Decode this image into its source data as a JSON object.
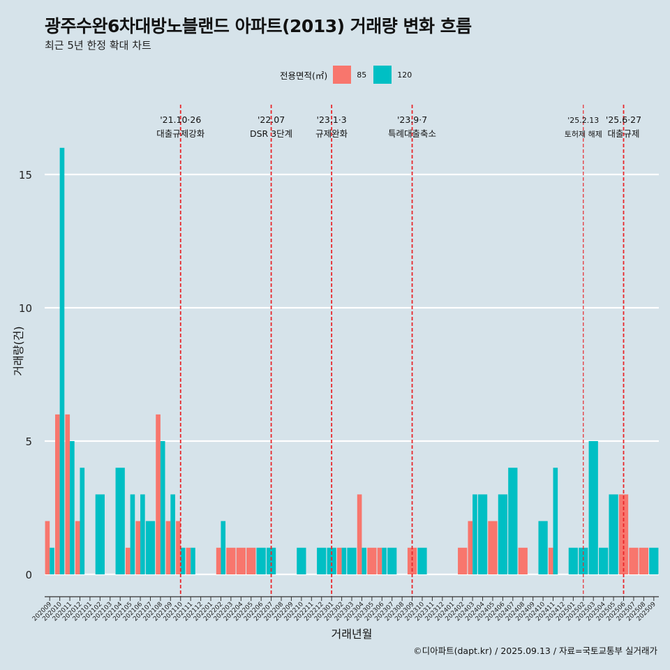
{
  "title": "광주수완6차대방노블랜드 아파트(2013) 거래량 변화 흐름",
  "subtitle": "최근 5년 한정 확대 차트",
  "caption": "©디아파트(dapt.kr) / 2025.09.13 / 자료=국토교통부 실거래가",
  "legend": {
    "title": "전용면적(㎡)",
    "items": [
      {
        "label": "85",
        "color": "#f8766d"
      },
      {
        "label": "120",
        "color": "#00bfc4"
      }
    ]
  },
  "chart_data": {
    "type": "bar",
    "xlabel": "거래년월",
    "ylabel": "거래량(건)",
    "ylim": [
      0,
      17
    ],
    "yticks": [
      0,
      5,
      10,
      15
    ],
    "grid": true,
    "legend_position": "top",
    "categories": [
      "202009",
      "202010",
      "202011",
      "202012",
      "202101",
      "202102",
      "202103",
      "202104",
      "202105",
      "202106",
      "202107",
      "202108",
      "202109",
      "202110",
      "202111",
      "202112",
      "202201",
      "202202",
      "202203",
      "202204",
      "202205",
      "202206",
      "202207",
      "202208",
      "202209",
      "202210",
      "202211",
      "202212",
      "202301",
      "202302",
      "202303",
      "202304",
      "202305",
      "202306",
      "202307",
      "202308",
      "202309",
      "202310",
      "202311",
      "202312",
      "202401",
      "202402",
      "202403",
      "202404",
      "202405",
      "202406",
      "202407",
      "202408",
      "202409",
      "202410",
      "202411",
      "202412",
      "202501",
      "202502",
      "202503",
      "202504",
      "202505",
      "202506",
      "202507",
      "202508",
      "202509"
    ],
    "tick_labels_shown": [
      "202009",
      "202010",
      "202011",
      "202012",
      "202101",
      "202102",
      "202103",
      "202104",
      "202105",
      "202106",
      "202107",
      "202108",
      "202109",
      "202110",
      "202111",
      "202112",
      "202201",
      "202202",
      "202203",
      "202204",
      "202205",
      "202206",
      "202207",
      "202208",
      "202209",
      "202210",
      "202211",
      "202212",
      "202301",
      "202302",
      "202303",
      "202304",
      "202305",
      "202306",
      "202307",
      "202308",
      "202309",
      "202310",
      "202311",
      "202312",
      "202401",
      "202402",
      "202403",
      "202404",
      "202405",
      "202406",
      "202407",
      "202408",
      "202409",
      "202410",
      "202411",
      "202412",
      "202501",
      "202502",
      "202503",
      "202504",
      "202505",
      "202506",
      "202507",
      "202508",
      "202509"
    ],
    "series": [
      {
        "name": "85",
        "color": "#f8766d",
        "values": [
          2,
          6,
          6,
          2,
          0,
          0,
          0,
          0,
          1,
          2,
          0,
          6,
          2,
          2,
          1,
          0,
          0,
          1,
          1,
          1,
          1,
          0,
          0,
          0,
          0,
          0,
          0,
          0,
          0,
          1,
          0,
          3,
          1,
          1,
          0,
          0,
          1,
          0,
          0,
          0,
          0,
          1,
          2,
          0,
          2,
          0,
          0,
          1,
          0,
          0,
          1,
          0,
          0,
          0,
          0,
          0,
          0,
          3,
          1,
          1,
          0
        ]
      },
      {
        "name": "120",
        "color": "#00bfc4",
        "values": [
          1,
          16,
          5,
          4,
          0,
          3,
          0,
          4,
          3,
          3,
          2,
          5,
          3,
          1,
          1,
          0,
          0,
          2,
          0,
          0,
          0,
          1,
          1,
          0,
          0,
          1,
          0,
          1,
          1,
          1,
          1,
          1,
          0,
          1,
          1,
          0,
          0,
          1,
          0,
          0,
          0,
          0,
          3,
          3,
          0,
          3,
          4,
          0,
          0,
          2,
          4,
          0,
          1,
          1,
          5,
          1,
          3,
          0,
          0,
          0,
          1
        ]
      }
    ],
    "annotations": [
      {
        "at": "202110",
        "date": "'21.10·26",
        "label": "대출규제강화",
        "style": "bold"
      },
      {
        "at": "202207",
        "date": "'22.07",
        "label": "DSR 3단계",
        "style": "bold"
      },
      {
        "at": "202301",
        "date": "'23.1·3",
        "label": "규제완화",
        "style": "bold"
      },
      {
        "at": "202309",
        "date": "'23.9·7",
        "label": "특례대출축소",
        "style": "bold"
      },
      {
        "at": "202502",
        "date": "'25.2.13",
        "label": "토허제 해제",
        "style": "thin"
      },
      {
        "at": "202506",
        "date": "'25.6·27",
        "label": "대출규제",
        "style": "bold"
      }
    ]
  }
}
